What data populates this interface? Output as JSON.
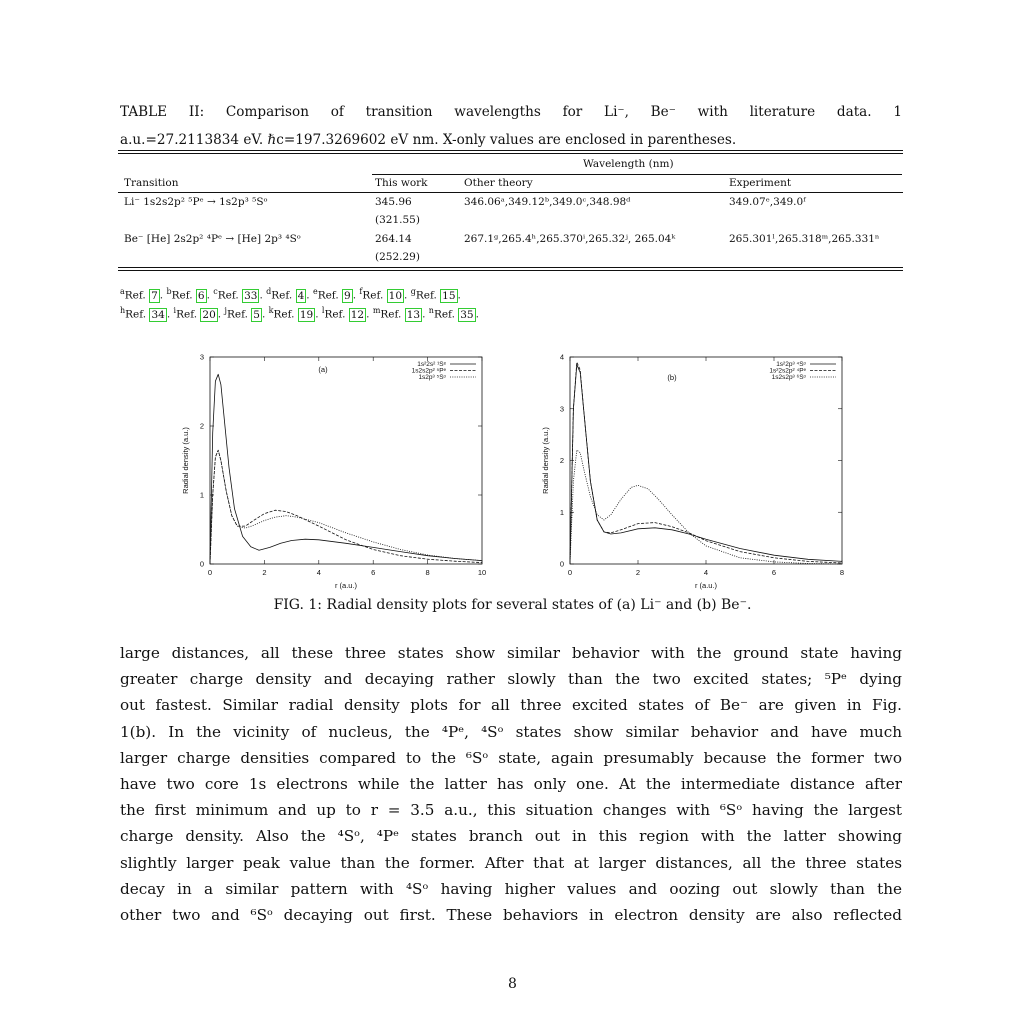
{
  "caption": {
    "line1": "TABLE II: Comparison of transition wavelengths for Li⁻, Be⁻ with literature data. 1",
    "line2": "a.u.=27.2113834 eV. ℏc=197.3269602 eV nm. X-only values are enclosed in parentheses."
  },
  "table": {
    "group_header": "Wavelength (nm)",
    "columns": [
      "Transition",
      "This work",
      "Other theory",
      "Experiment"
    ],
    "rows": [
      {
        "transition": "Li⁻ 1s2s2p² ⁵Pᵉ → 1s2p³ ⁵Sᵒ",
        "this_work": "345.96",
        "this_work_x": "(321.55)",
        "other_theory": "346.06ᵃ,349.12ᵇ,349.0ᶜ,348.98ᵈ",
        "experiment": "349.07ᵉ,349.0ᶠ"
      },
      {
        "transition": "Be⁻ [He] 2s2p² ⁴Pᵉ → [He] 2p³ ⁴Sᵒ",
        "this_work": "264.14",
        "this_work_x": "(252.29)",
        "other_theory": "267.1ᵍ,265.4ʰ,265.370ⁱ,265.32ʲ, 265.04ᵏ",
        "experiment": "265.301ˡ,265.318ᵐ,265.331ⁿ"
      }
    ]
  },
  "footnotes": {
    "line1": [
      {
        "sup": "a",
        "text": "Ref. ",
        "box": "7"
      },
      {
        "sup": "b",
        "text": "Ref. ",
        "box": "6"
      },
      {
        "sup": "c",
        "text": "Ref. ",
        "box": "33"
      },
      {
        "sup": "d",
        "text": "Ref. ",
        "box": "4"
      },
      {
        "sup": "e",
        "text": "Ref. ",
        "box": "9"
      },
      {
        "sup": "f",
        "text": "Ref. ",
        "box": "10"
      },
      {
        "sup": "g",
        "text": "Ref. ",
        "box": "15"
      }
    ],
    "line2": [
      {
        "sup": "h",
        "text": "Ref. ",
        "box": "34"
      },
      {
        "sup": "i",
        "text": "Ref. ",
        "box": "20"
      },
      {
        "sup": "j",
        "text": "Ref. ",
        "box": "5"
      },
      {
        "sup": "k",
        "text": "Ref. ",
        "box": "19"
      },
      {
        "sup": "l",
        "text": "Ref. ",
        "box": "12"
      },
      {
        "sup": "m",
        "text": "Ref. ",
        "box": "13"
      },
      {
        "sup": "n",
        "text": "Ref. ",
        "box": "35"
      }
    ]
  },
  "chart_data": [
    {
      "type": "line",
      "panel_label": "(a)",
      "xlabel": "r (a.u.)",
      "ylabel": "Radial density (a.u.)",
      "xlim": [
        0,
        10
      ],
      "ylim": [
        0,
        3
      ],
      "xticks": [
        "0",
        "2",
        "4",
        "6",
        "8",
        "10"
      ],
      "yticks": [
        "0",
        "1",
        "2",
        "3"
      ],
      "legend_position": "top-right",
      "series": [
        {
          "name": "1s²2s² ¹Sᵉ",
          "dash": "solid",
          "x": [
            0,
            0.1,
            0.2,
            0.3,
            0.4,
            0.5,
            0.7,
            0.9,
            1.2,
            1.5,
            1.8,
            2.2,
            2.6,
            3.0,
            3.5,
            4.0,
            5.0,
            6.0,
            7.0,
            8.0,
            9.0,
            10.0
          ],
          "y": [
            0,
            1.9,
            2.65,
            2.75,
            2.6,
            2.2,
            1.4,
            0.8,
            0.4,
            0.25,
            0.2,
            0.24,
            0.3,
            0.34,
            0.36,
            0.35,
            0.3,
            0.24,
            0.18,
            0.12,
            0.08,
            0.05
          ]
        },
        {
          "name": "1s2s2p² ⁵Pᵉ",
          "dash": "dashed",
          "x": [
            0,
            0.1,
            0.2,
            0.3,
            0.4,
            0.6,
            0.8,
            1.0,
            1.3,
            1.6,
            2.0,
            2.4,
            2.8,
            3.2,
            4.0,
            5.0,
            6.0,
            7.0,
            8.0,
            9.0,
            10.0
          ],
          "y": [
            0,
            1.0,
            1.55,
            1.65,
            1.5,
            1.05,
            0.7,
            0.55,
            0.55,
            0.63,
            0.73,
            0.78,
            0.76,
            0.7,
            0.55,
            0.35,
            0.21,
            0.12,
            0.07,
            0.04,
            0.02
          ]
        },
        {
          "name": "1s2p³ ⁵Sᵒ",
          "dash": "dotted",
          "x": [
            0,
            0.1,
            0.2,
            0.3,
            0.4,
            0.6,
            0.8,
            1.0,
            1.3,
            1.6,
            2.0,
            2.4,
            2.8,
            3.2,
            4.0,
            5.0,
            6.0,
            7.0,
            8.0,
            9.0,
            10.0
          ],
          "y": [
            0,
            1.0,
            1.55,
            1.65,
            1.5,
            1.05,
            0.7,
            0.55,
            0.52,
            0.56,
            0.63,
            0.68,
            0.7,
            0.68,
            0.6,
            0.45,
            0.32,
            0.21,
            0.13,
            0.08,
            0.05
          ]
        }
      ]
    },
    {
      "type": "line",
      "panel_label": "(b)",
      "xlabel": "r (a.u.)",
      "ylabel": "Radial density (a.u.)",
      "xlim": [
        0,
        8
      ],
      "ylim": [
        0,
        4
      ],
      "xticks": [
        "0",
        "2",
        "4",
        "6",
        "8"
      ],
      "yticks": [
        "0",
        "1",
        "2",
        "3",
        "4"
      ],
      "legend_position": "top-right",
      "series": [
        {
          "name": "1s²2p³ ⁴Sᵒ",
          "dash": "solid",
          "x": [
            0,
            0.1,
            0.2,
            0.3,
            0.4,
            0.6,
            0.8,
            1.0,
            1.2,
            1.5,
            2.0,
            2.5,
            3.0,
            3.5,
            4.0,
            5.0,
            6.0,
            7.0,
            8.0
          ],
          "y": [
            0,
            3.0,
            3.85,
            3.7,
            3.0,
            1.6,
            0.85,
            0.62,
            0.58,
            0.6,
            0.68,
            0.7,
            0.66,
            0.58,
            0.48,
            0.3,
            0.17,
            0.09,
            0.05
          ]
        },
        {
          "name": "1s²2s2p² ⁴Pᵉ",
          "dash": "dashed",
          "x": [
            0,
            0.1,
            0.2,
            0.3,
            0.4,
            0.6,
            0.8,
            1.0,
            1.2,
            1.5,
            2.0,
            2.5,
            3.0,
            3.5,
            4.0,
            5.0,
            6.0,
            7.0,
            8.0
          ],
          "y": [
            0,
            3.0,
            3.9,
            3.75,
            3.0,
            1.6,
            0.85,
            0.62,
            0.6,
            0.66,
            0.78,
            0.8,
            0.72,
            0.6,
            0.45,
            0.24,
            0.12,
            0.05,
            0.02
          ]
        },
        {
          "name": "1s2s2p³ ⁶Sᵒ",
          "dash": "dotted",
          "x": [
            0,
            0.1,
            0.2,
            0.3,
            0.4,
            0.6,
            0.8,
            1.0,
            1.2,
            1.5,
            1.8,
            2.0,
            2.3,
            2.6,
            3.0,
            3.5,
            4.0,
            5.0,
            6.0,
            7.0,
            8.0
          ],
          "y": [
            0,
            1.6,
            2.2,
            2.15,
            1.85,
            1.3,
            0.95,
            0.85,
            0.95,
            1.25,
            1.48,
            1.52,
            1.45,
            1.25,
            0.95,
            0.6,
            0.35,
            0.12,
            0.04,
            0.01,
            0.0
          ]
        }
      ]
    }
  ],
  "figure_caption": "FIG. 1: Radial density plots for several states of (a) Li⁻ and (b) Be⁻.",
  "body_lines": [
    "large distances, all these three states show similar behavior with the ground state having",
    "greater charge density and decaying rather slowly than the two excited states; ⁵Pᵉ dying",
    "out fastest. Similar radial density plots for all three excited states of Be⁻ are given in Fig.",
    "1(b). In the vicinity of nucleus, the ⁴Pᵉ, ⁴Sᵒ states show similar behavior and have much",
    "larger charge densities compared to the ⁶Sᵒ state, again presumably because the former two",
    "have two core 1s electrons while the latter has only one. At the intermediate distance after",
    "the first minimum and up to r = 3.5 a.u., this situation changes with ⁶Sᵒ having the largest",
    "charge density. Also the ⁴Sᵒ, ⁴Pᵉ states branch out in this region with the latter showing",
    "slightly larger peak value than the former. After that at larger distances, all the three states",
    "decay in a similar pattern with ⁴Sᵒ having higher values and oozing out slowly than the",
    "other two and ⁶Sᵒ decaying out first. These behaviors in electron density are also reflected"
  ],
  "page_number": "8"
}
